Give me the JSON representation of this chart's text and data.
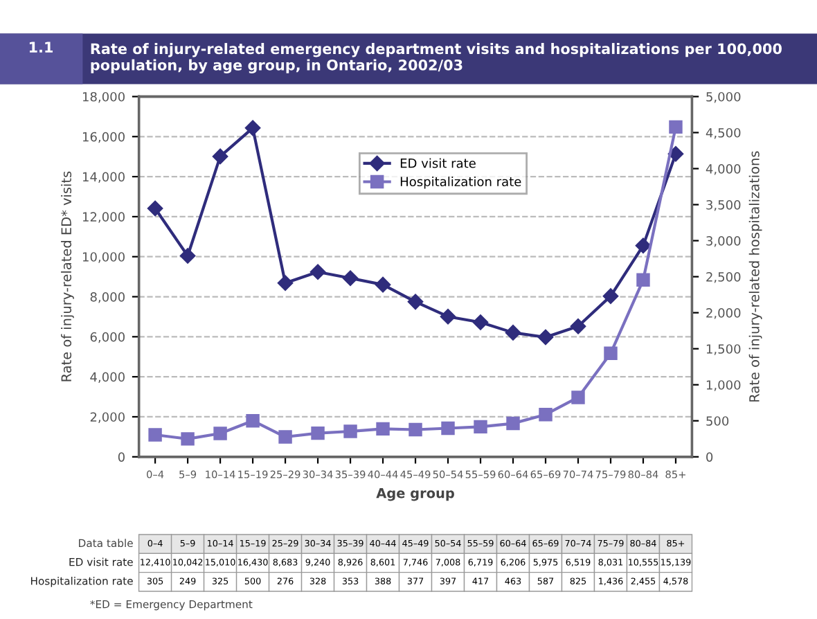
{
  "chart_data": {
    "type": "line",
    "title": "Rate of injury-related emergency department visits and hospitalizations per 100,000 population, by age group, in Ontario, 2002/03",
    "xlabel": "Age group",
    "ylabel": "Rate of injury-related ED* visits",
    "y2label": "Rate of injury-related hospitalizations",
    "categories": [
      "0–4",
      "5–9",
      "10–14",
      "15–19",
      "25–29",
      "30–34",
      "35–39",
      "40–44",
      "45–49",
      "50–54",
      "55–59",
      "60–64",
      "65–69",
      "70–74",
      "75–79",
      "80–84",
      "85+"
    ],
    "series": [
      {
        "name": "ED visit rate",
        "color": "#2f2c7c",
        "marker": "diamond",
        "values": [
          12410,
          10042,
          15010,
          16430,
          8683,
          9240,
          8926,
          8601,
          7746,
          7008,
          6719,
          6206,
          5975,
          6519,
          8031,
          10555,
          15139
        ],
        "value_labels": [
          "12,410",
          "10,042",
          "15,010",
          "16,430",
          "8,683",
          "9,240",
          "8,926",
          "8,601",
          "7,746",
          "7,008",
          "6,719",
          "6,206",
          "5,975",
          "6,519",
          "8,031",
          "10,555",
          "15,139"
        ]
      },
      {
        "name": "Hospitalization rate",
        "color": "#7a70c0",
        "marker": "square",
        "axis": "y2",
        "values": [
          305,
          249,
          325,
          500,
          276,
          328,
          353,
          388,
          377,
          397,
          417,
          463,
          587,
          825,
          1436,
          2455,
          4578
        ],
        "value_labels": [
          "305",
          "249",
          "325",
          "500",
          "276",
          "328",
          "353",
          "388",
          "377",
          "397",
          "417",
          "463",
          "587",
          "825",
          "1,436",
          "2,455",
          "4,578"
        ]
      }
    ],
    "ylim": [
      0,
      18000
    ],
    "yticks": [
      {
        "value": 0,
        "label": "0"
      },
      {
        "value": 2000,
        "label": "2,000"
      },
      {
        "value": 4000,
        "label": "4,000"
      },
      {
        "value": 6000,
        "label": "6,000"
      },
      {
        "value": 8000,
        "label": "8,000"
      },
      {
        "value": 10000,
        "label": "10,000"
      },
      {
        "value": 12000,
        "label": "12,000"
      },
      {
        "value": 14000,
        "label": "14,000"
      },
      {
        "value": 16000,
        "label": "16,000"
      },
      {
        "value": 18000,
        "label": "18,000"
      }
    ],
    "y2lim": [
      0,
      5000
    ],
    "y2ticks": [
      {
        "value": 0,
        "label": "0"
      },
      {
        "value": 500,
        "label": "500"
      },
      {
        "value": 1000,
        "label": "1,000"
      },
      {
        "value": 1500,
        "label": "1,500"
      },
      {
        "value": 2000,
        "label": "2,000"
      },
      {
        "value": 2500,
        "label": "2,500"
      },
      {
        "value": 3000,
        "label": "3,000"
      },
      {
        "value": 3500,
        "label": "3,500"
      },
      {
        "value": 4000,
        "label": "4,000"
      },
      {
        "value": 4500,
        "label": "4,500"
      },
      {
        "value": 5000,
        "label": "5,000"
      }
    ],
    "grid": "y",
    "legend": "top",
    "line_style": "solid",
    "annotations": [
      "1.1",
      "Data table",
      "*ED = Emergency Department"
    ]
  }
}
